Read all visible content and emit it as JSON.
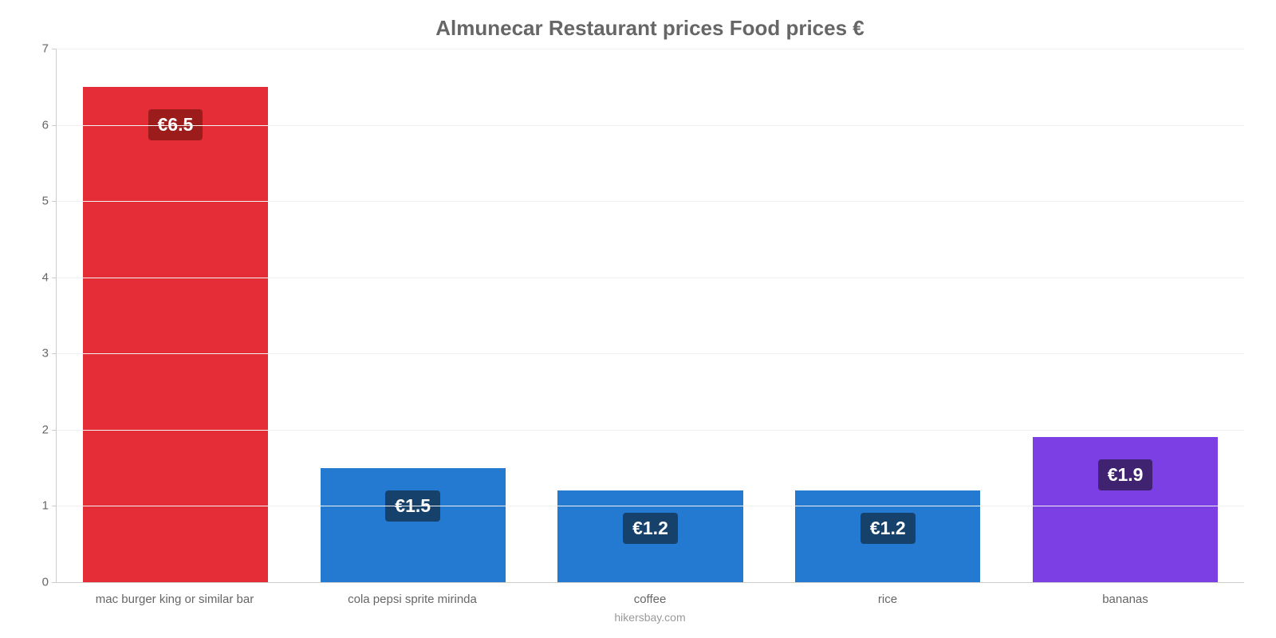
{
  "chart": {
    "type": "bar",
    "title": "Almunecar Restaurant prices Food prices €",
    "title_fontsize": 26,
    "title_color": "#666666",
    "background_color": "#ffffff",
    "grid_color": "#f2f2f2",
    "axis_color": "#cccccc",
    "tick_label_color": "#666666",
    "tick_fontsize": 15,
    "ylim": [
      0,
      7
    ],
    "ytick_step": 1,
    "yticks": [
      0,
      1,
      2,
      3,
      4,
      5,
      6,
      7
    ],
    "bar_width": 0.78,
    "categories": [
      "mac burger king or similar bar",
      "cola pepsi sprite mirinda",
      "coffee",
      "rice",
      "bananas"
    ],
    "values": [
      6.5,
      1.5,
      1.2,
      1.2,
      1.9
    ],
    "value_labels": [
      "€6.5",
      "€1.5",
      "€1.2",
      "€1.2",
      "€1.9"
    ],
    "bar_colors": [
      "#e52d37",
      "#2479d1",
      "#2479d1",
      "#2479d1",
      "#7b3fe4"
    ],
    "badge_colors": [
      "#9c1b1b",
      "#16416a",
      "#16416a",
      "#16416a",
      "#3f2370"
    ],
    "badge_fontsize": 23,
    "footer": "hikersbay.com",
    "footer_color": "#999999"
  }
}
